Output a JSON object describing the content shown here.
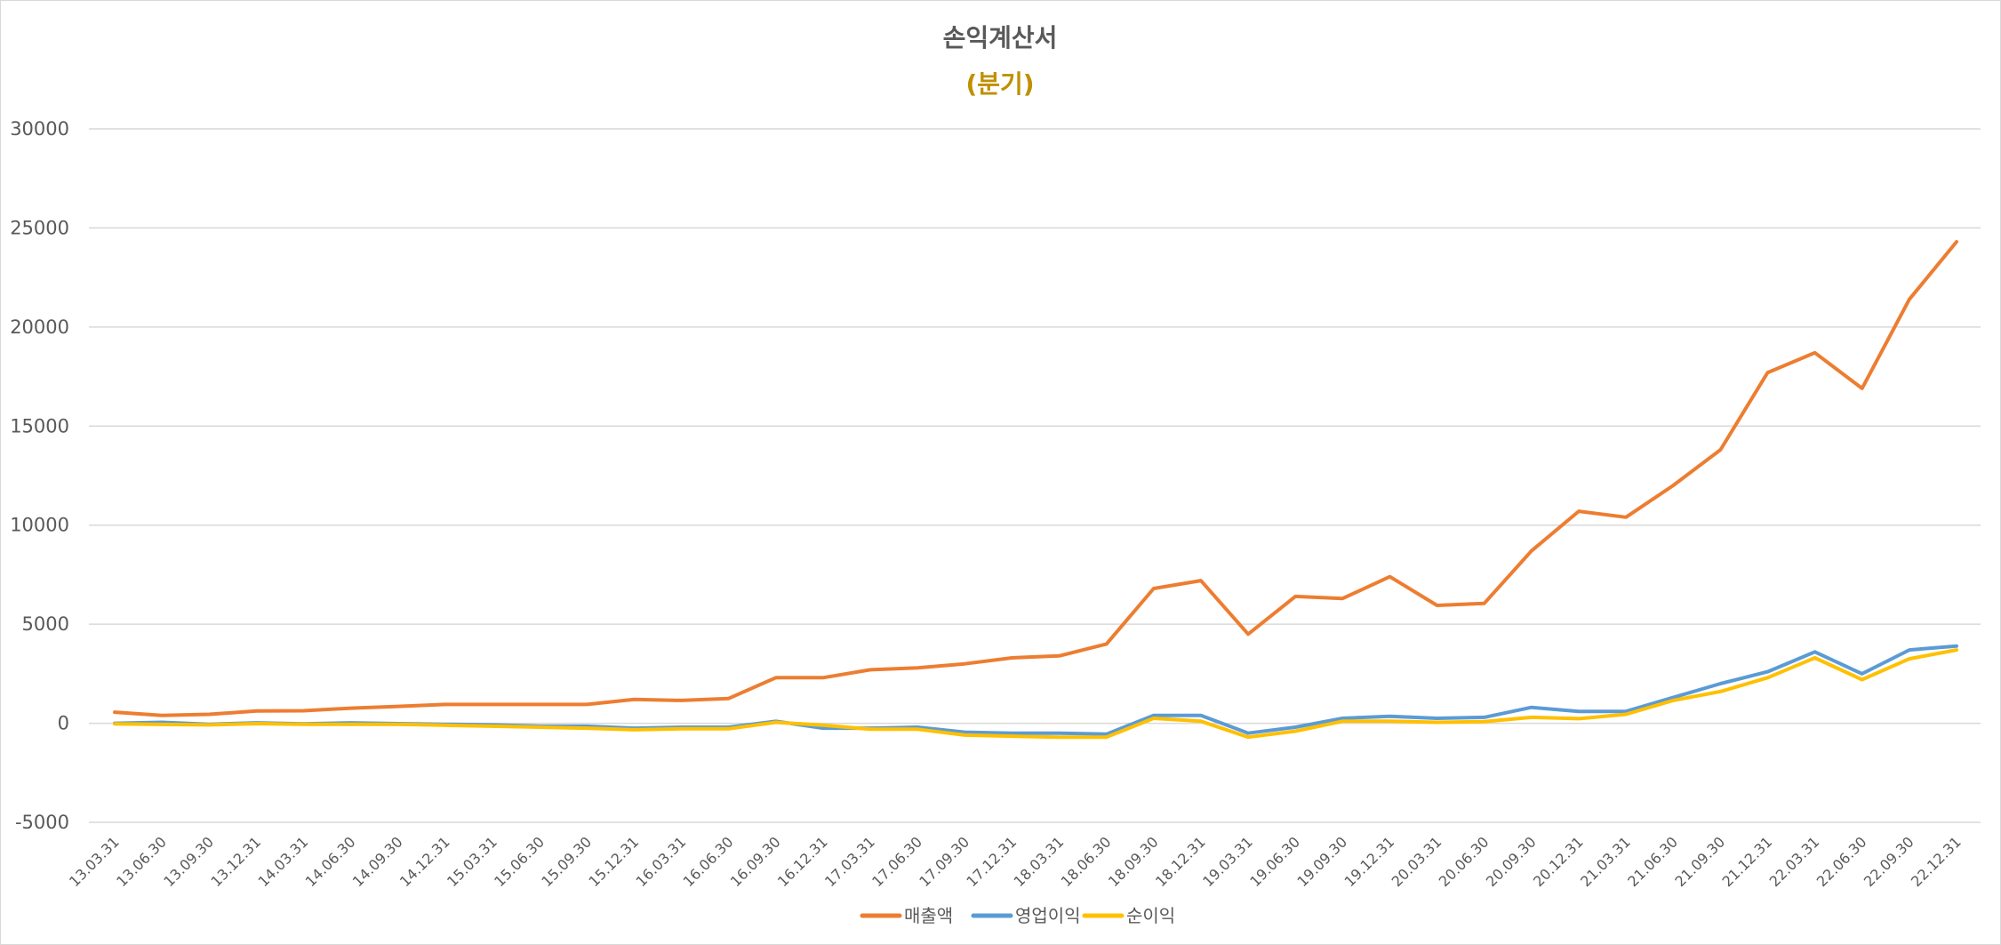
{
  "chart_data": {
    "type": "line",
    "title": "손익계산서",
    "subtitle": "(분기)",
    "subtitle_color": "#BF9000",
    "xlabel": "",
    "ylabel": "",
    "ylim": [
      -5000,
      30000
    ],
    "yticks": [
      -5000,
      0,
      5000,
      10000,
      15000,
      20000,
      25000,
      30000
    ],
    "grid": true,
    "legend_position": "bottom",
    "categories": [
      "13.03.31",
      "13.06.30",
      "13.09.30",
      "13.12.31",
      "14.03.31",
      "14.06.30",
      "14.09.30",
      "14.12.31",
      "15.03.31",
      "15.06.30",
      "15.09.30",
      "15.12.31",
      "16.03.31",
      "16.06.30",
      "16.09.30",
      "16.12.31",
      "17.03.31",
      "17.06.30",
      "17.09.30",
      "17.12.31",
      "18.03.31",
      "18.06.30",
      "18.09.30",
      "18.12.31",
      "19.03.31",
      "19.06.30",
      "19.09.30",
      "19.12.31",
      "20.03.31",
      "20.06.30",
      "20.09.30",
      "20.12.31",
      "21.03.31",
      "21.06.30",
      "21.09.30",
      "21.12.31",
      "22.03.31",
      "22.06.30",
      "22.09.30",
      "22.12.31"
    ],
    "series": [
      {
        "name": "매출액",
        "color": "#ED7D31",
        "values": [
          560,
          400,
          450,
          620,
          630,
          760,
          850,
          950,
          950,
          950,
          950,
          1200,
          1150,
          1250,
          2300,
          2300,
          2700,
          2800,
          3000,
          3300,
          3400,
          4000,
          6800,
          7200,
          4500,
          6400,
          6300,
          7400,
          5950,
          6050,
          8700,
          10700,
          10400,
          12000,
          13800,
          17700,
          18700,
          16900,
          21400,
          24300
        ]
      },
      {
        "name": "영업이익",
        "color": "#5B9BD5",
        "values": [
          0,
          50,
          -50,
          20,
          -30,
          20,
          -20,
          -50,
          -80,
          -150,
          -150,
          -250,
          -200,
          -200,
          100,
          -250,
          -250,
          -200,
          -450,
          -500,
          -500,
          -550,
          400,
          400,
          -500,
          -200,
          250,
          350,
          250,
          300,
          800,
          600,
          600,
          1300,
          2000,
          2600,
          3600,
          2500,
          3700,
          3900
        ]
      },
      {
        "name": "순이익",
        "color": "#FFC000",
        "values": [
          -30,
          -60,
          -80,
          -20,
          -50,
          -50,
          -50,
          -100,
          -150,
          -200,
          -250,
          -330,
          -280,
          -280,
          50,
          -100,
          -300,
          -300,
          -600,
          -650,
          -700,
          -700,
          250,
          100,
          -700,
          -400,
          100,
          100,
          50,
          80,
          300,
          230,
          450,
          1150,
          1600,
          2300,
          3300,
          2200,
          3250,
          3700
        ]
      }
    ]
  }
}
